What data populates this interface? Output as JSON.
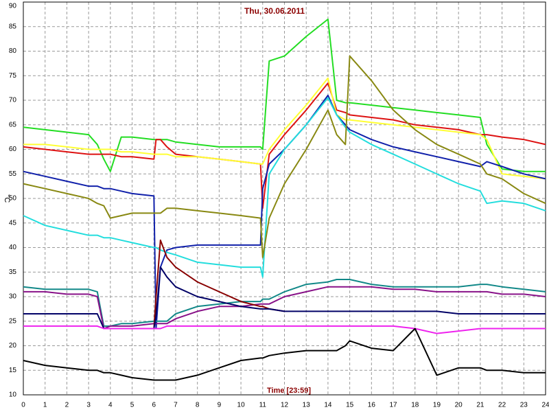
{
  "chart_data": {
    "type": "line",
    "title": "Thu, 30.06.2011",
    "x_label": "Time [23:59]",
    "y_label": "°C",
    "x": [
      0,
      1,
      2,
      3,
      3.4,
      3.7,
      4,
      4.5,
      5,
      6,
      6.1,
      6.3,
      6.6,
      7,
      8,
      9,
      10,
      10.9,
      11,
      11.3,
      12,
      13,
      14,
      14.4,
      14.8,
      15,
      16,
      17,
      18,
      19,
      20,
      21,
      21.3,
      22,
      23,
      24
    ],
    "xlim": [
      0,
      24
    ],
    "xticks": [
      0,
      1,
      2,
      3,
      4,
      5,
      6,
      7,
      8,
      9,
      10,
      11,
      12,
      13,
      14,
      15,
      16,
      17,
      18,
      19,
      20,
      21,
      22,
      23,
      24
    ],
    "ylim": [
      10,
      90
    ],
    "yticks": [
      10,
      15,
      20,
      25,
      30,
      35,
      40,
      45,
      50,
      55,
      60,
      65,
      70,
      75,
      80,
      85,
      90
    ],
    "grid": true,
    "series": [
      {
        "color": "#22dd22",
        "values": [
          64.5,
          64,
          63.5,
          63,
          61,
          58,
          55.5,
          62.5,
          62.5,
          62,
          62,
          62,
          62,
          61.5,
          61,
          60.5,
          60.5,
          60.5,
          60,
          78,
          79,
          83,
          86.5,
          70,
          69.5,
          69.5,
          69,
          68.5,
          68,
          67.5,
          67,
          66.5,
          61,
          56,
          55.5,
          55.5
        ]
      },
      {
        "color": "#dd1111",
        "values": [
          60.5,
          60,
          59.5,
          59,
          59,
          59,
          59,
          58.5,
          58.5,
          58,
          62,
          62,
          60.5,
          59,
          58.5,
          58,
          57.5,
          57,
          48,
          59,
          63,
          68,
          73.5,
          68,
          67.5,
          67,
          66.5,
          66,
          65,
          64.5,
          64,
          63,
          63,
          62.5,
          62,
          61
        ]
      },
      {
        "color": "#ffff33",
        "values": [
          61,
          61,
          60.5,
          60,
          60,
          60,
          60,
          59.5,
          59.5,
          59,
          59,
          59,
          59,
          58.5,
          58.5,
          58,
          57.5,
          57,
          57,
          60,
          64,
          69,
          74.5,
          67,
          66,
          66,
          65.5,
          65,
          64.5,
          64,
          63.5,
          63,
          62,
          55,
          54.5,
          54
        ]
      },
      {
        "color": "#1020aa",
        "values": [
          55.5,
          54.5,
          53.5,
          52.5,
          52.5,
          52,
          52,
          51.5,
          51,
          50.5,
          23.5,
          36,
          39.5,
          40,
          40.5,
          40.5,
          40.5,
          40.5,
          52,
          57,
          60,
          65,
          71,
          67,
          65,
          64,
          62,
          60.5,
          59.5,
          58.5,
          57.5,
          56.5,
          57.5,
          56.5,
          55,
          54
        ]
      },
      {
        "color": "#22dddd",
        "values": [
          46.5,
          44.5,
          43.5,
          42.5,
          42.5,
          42,
          42,
          41.5,
          41,
          40,
          40,
          39.5,
          39,
          38.5,
          37,
          36.5,
          36,
          36,
          34,
          55,
          60,
          65,
          70.5,
          67,
          64.5,
          63.5,
          61,
          59,
          57,
          55,
          53,
          51.5,
          49,
          49.5,
          49,
          47.5
        ]
      },
      {
        "color": "#888811",
        "values": [
          53,
          52,
          51,
          50,
          49,
          48.5,
          46,
          46.5,
          47,
          47,
          47,
          47,
          48,
          48,
          47.5,
          47,
          46.5,
          46,
          38,
          46,
          53,
          60,
          68,
          63,
          61,
          79,
          74,
          68,
          64,
          61,
          59,
          57,
          55,
          54,
          51,
          49
        ]
      },
      {
        "color": "#118888",
        "values": [
          32,
          31.5,
          31.5,
          31.5,
          31,
          24,
          24,
          24.5,
          24.5,
          25,
          25,
          25,
          25,
          26.5,
          28,
          28.5,
          29,
          29,
          29.5,
          29.5,
          31,
          32.5,
          33,
          33.5,
          33.5,
          33.5,
          32.5,
          32,
          32,
          32,
          32,
          32.5,
          32.5,
          32,
          31.5,
          31
        ]
      },
      {
        "color": "#881188",
        "values": [
          31,
          31,
          30.5,
          30.5,
          30,
          23.5,
          24,
          24,
          24,
          24.5,
          24.5,
          24.5,
          24.5,
          25.5,
          27,
          28,
          28,
          28.5,
          28.5,
          28.5,
          30,
          31,
          32,
          32,
          32,
          32,
          32,
          31.5,
          31.5,
          31,
          31,
          31,
          31,
          30.5,
          30.5,
          30
        ]
      },
      {
        "color": "#880000",
        "values": [
          null,
          null,
          null,
          null,
          null,
          23.5,
          23.5,
          23.5,
          23.5,
          23.5,
          30,
          41.5,
          38,
          36,
          33,
          31,
          29,
          28,
          28,
          27.5,
          27,
          null,
          null,
          null,
          null,
          null,
          null,
          null,
          null,
          null,
          null,
          null,
          null,
          null,
          null,
          null
        ]
      },
      {
        "color": "#000066",
        "values": [
          26.5,
          26.5,
          26.5,
          26.5,
          26.5,
          23.5,
          23.5,
          23.5,
          23.5,
          23.5,
          26,
          36,
          34,
          32,
          30,
          29,
          28,
          27.5,
          27.5,
          27.5,
          27,
          27,
          27,
          27,
          27,
          27,
          27,
          27,
          27,
          27,
          26.5,
          26.5,
          26.5,
          26.5,
          26.5,
          26.5
        ]
      },
      {
        "color": "#ee22ee",
        "values": [
          24,
          24,
          24,
          24,
          24,
          23.5,
          23.5,
          23.5,
          23.5,
          23.5,
          23.5,
          23.5,
          24,
          24,
          24,
          24,
          24,
          24,
          24,
          24,
          24,
          24,
          24,
          24,
          24,
          24,
          24,
          24,
          23.5,
          22.5,
          23,
          23.5,
          23.5,
          23.5,
          23.5,
          23.5
        ]
      },
      {
        "color": "#000000",
        "values": [
          17,
          16,
          15.5,
          15,
          15,
          14.5,
          14.5,
          14,
          13.5,
          13,
          13,
          13,
          13,
          13,
          14,
          15.5,
          17,
          17.5,
          17.5,
          18,
          18.5,
          19,
          19,
          19,
          20,
          21,
          19.5,
          19,
          23.5,
          14,
          15.5,
          15.5,
          15,
          15,
          14.5,
          14.5
        ]
      }
    ]
  }
}
